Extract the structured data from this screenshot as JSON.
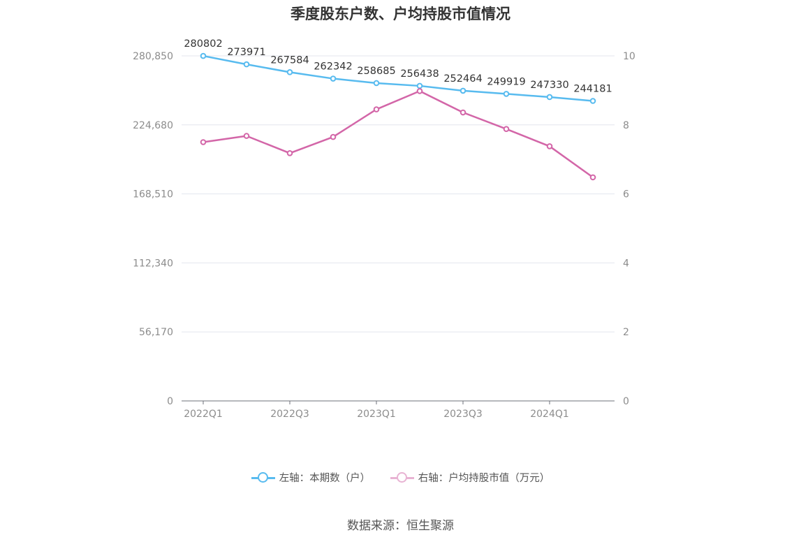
{
  "chart_data": {
    "type": "line",
    "title": "季度股东户数、户均持股市值情况",
    "categories": [
      "2022Q1",
      "2022Q2",
      "2022Q3",
      "2022Q4",
      "2023Q1",
      "2023Q2",
      "2023Q3",
      "2023Q4",
      "2024Q1",
      "2024Q2"
    ],
    "x_tick_labels": [
      "2022Q1",
      "2022Q3",
      "2023Q1",
      "2023Q3",
      "2024Q1"
    ],
    "left_axis": {
      "ticks": [
        "0",
        "56,170",
        "112,340",
        "168,510",
        "224,680",
        "280,850"
      ],
      "min": 0,
      "max": 280850
    },
    "right_axis": {
      "ticks": [
        "0",
        "2",
        "4",
        "6",
        "8",
        "10"
      ],
      "min": 0,
      "max": 10
    },
    "series": [
      {
        "name": "左轴：本期数（户）",
        "axis": "left",
        "color": "#58bbef",
        "values": [
          280802,
          273971,
          267584,
          262342,
          258685,
          256438,
          252464,
          249919,
          247330,
          244181
        ],
        "labels": [
          "280802",
          "273971",
          "267584",
          "262342",
          "258685",
          "256438",
          "252464",
          "249919",
          "247330",
          "244181"
        ]
      },
      {
        "name": "右轴：户均持股市值（万元）",
        "axis": "right",
        "color": "#d366a8",
        "values": [
          7.5,
          7.68,
          7.18,
          7.65,
          8.45,
          8.98,
          8.36,
          7.88,
          7.38,
          6.48
        ]
      }
    ],
    "legend_position": "bottom",
    "grid": true
  },
  "source": "数据来源：恒生聚源"
}
